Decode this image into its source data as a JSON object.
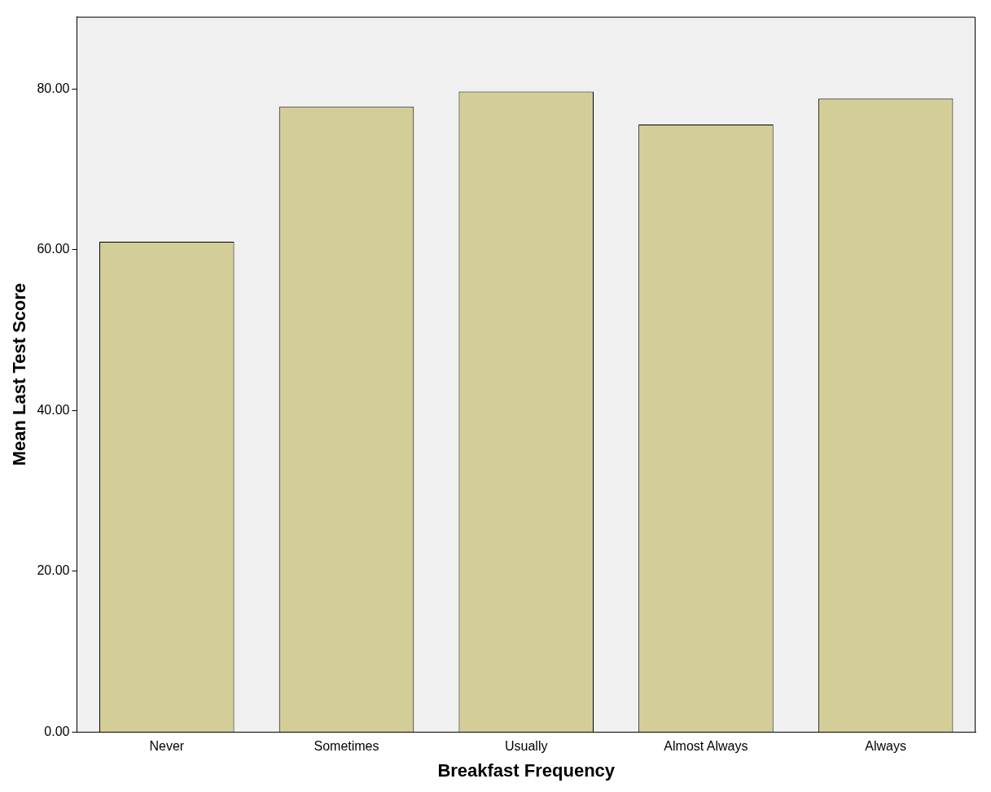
{
  "chart_data": {
    "type": "bar",
    "xlabel": "Breakfast Frequency",
    "ylabel": "Mean Last Test Score",
    "categories": [
      "Never",
      "Sometimes",
      "Usually",
      "Almost Always",
      "Always"
    ],
    "values": [
      61.0,
      77.8,
      79.7,
      75.6,
      78.8
    ],
    "color": "#d3ce97",
    "ylim": [
      0,
      89
    ],
    "yticks": [
      {
        "value": 0,
        "label": "0.00"
      },
      {
        "value": 20,
        "label": "20.00"
      },
      {
        "value": 40,
        "label": "40.00"
      },
      {
        "value": 60,
        "label": "60.00"
      },
      {
        "value": 80,
        "label": "80.00"
      }
    ],
    "grid": false,
    "legend": false
  }
}
